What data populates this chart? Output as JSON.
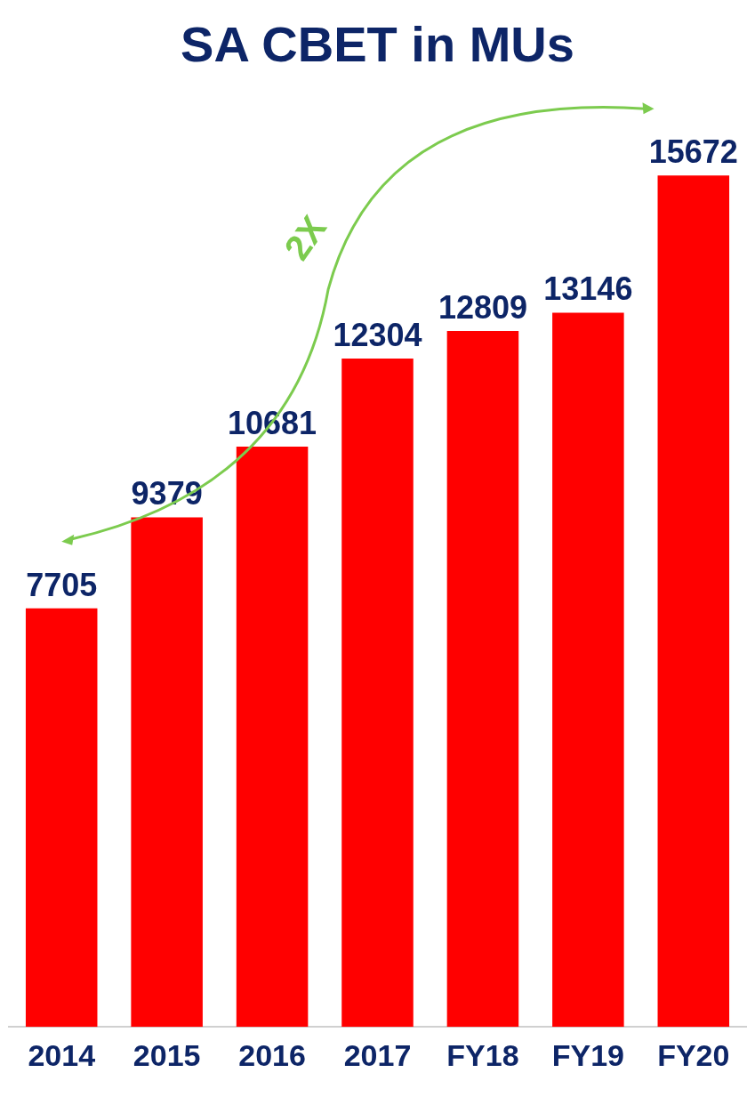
{
  "chart_data": {
    "type": "bar",
    "title": "SA CBET in MUs",
    "categories": [
      "2014",
      "2015",
      "2016",
      "2017",
      "FY18",
      "FY19",
      "FY20"
    ],
    "values": [
      7705,
      9379,
      10681,
      12304,
      12809,
      13146,
      15672
    ],
    "data_labels": true,
    "color": "#ff0000",
    "annotations": [
      "2X"
    ],
    "grid": false,
    "legend": false,
    "tick_labels": "x"
  }
}
